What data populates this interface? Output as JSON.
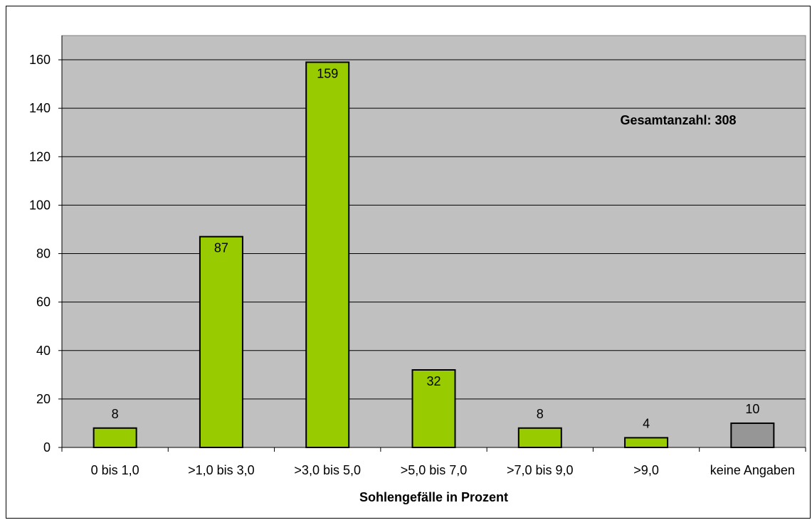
{
  "chart_data": {
    "type": "bar",
    "categories": [
      "0 bis 1,0",
      ">1,0 bis 3,0",
      ">3,0 bis 5,0",
      ">5,0 bis 7,0",
      ">7,0 bis 9,0",
      ">9,0",
      "keine Angaben"
    ],
    "values": [
      8,
      87,
      159,
      32,
      8,
      4,
      10
    ],
    "data_labels": [
      "8",
      "87",
      "159",
      "32",
      "8",
      "4",
      "10"
    ],
    "bar_colors": [
      "#99cc00",
      "#99cc00",
      "#99cc00",
      "#99cc00",
      "#99cc00",
      "#99cc00",
      "#969696"
    ],
    "title": "",
    "xlabel": "Sohlengefälle in Prozent",
    "ylabel": "",
    "ylim": [
      0,
      170
    ],
    "yticks": [
      0,
      20,
      40,
      60,
      80,
      100,
      120,
      140,
      160
    ],
    "annotation": "Gesamtanzahl: 308",
    "grid": true,
    "legend": "none",
    "plot_background": "#c0c0c0"
  }
}
